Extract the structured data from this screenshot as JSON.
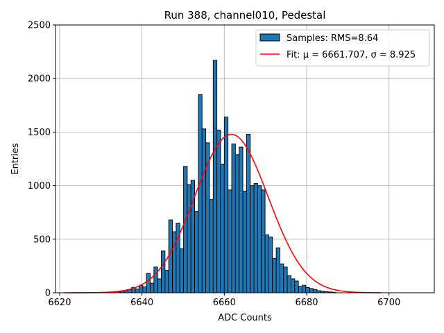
{
  "chart_data": {
    "type": "bar",
    "title": "Run 388, channel010, Pedestal",
    "xlabel": "ADC Counts",
    "ylabel": "Entries",
    "xlim": [
      6619,
      6711
    ],
    "ylim": [
      0,
      2500
    ],
    "xticks": [
      6620,
      6640,
      6660,
      6680,
      6700
    ],
    "yticks": [
      0,
      500,
      1000,
      1500,
      2000,
      2500
    ],
    "xtick_labels": [
      "6620",
      "6640",
      "6660",
      "6680",
      "6700"
    ],
    "ytick_labels": [
      "0",
      "500",
      "1000",
      "1500",
      "2000",
      "2500"
    ],
    "grid": true,
    "legend_position": "top-right",
    "histogram": {
      "bin_start": 6633.0,
      "bin_width": 0.9,
      "counts": [
        5,
        10,
        15,
        20,
        30,
        50,
        35,
        70,
        55,
        180,
        90,
        240,
        130,
        390,
        210,
        680,
        570,
        650,
        410,
        1180,
        1010,
        1050,
        760,
        1850,
        1530,
        1400,
        870,
        2170,
        1520,
        1200,
        1640,
        960,
        1390,
        1290,
        1360,
        950,
        1480,
        1000,
        1020,
        1000,
        960,
        540,
        520,
        320,
        420,
        270,
        240,
        160,
        130,
        110,
        60,
        70,
        50,
        40,
        30,
        20,
        15,
        10,
        8,
        5
      ],
      "color": "#1f77b4",
      "edge_color": "#000000",
      "legend": "Samples: RMS=8.64"
    },
    "fit": {
      "type": "gaussian",
      "mu": 6661.707,
      "sigma": 8.925,
      "amplitude": 1480,
      "x_range": [
        6621,
        6698
      ],
      "color": "#ff0000",
      "legend": "Fit: μ = 6661.707, σ = 8.925"
    }
  }
}
